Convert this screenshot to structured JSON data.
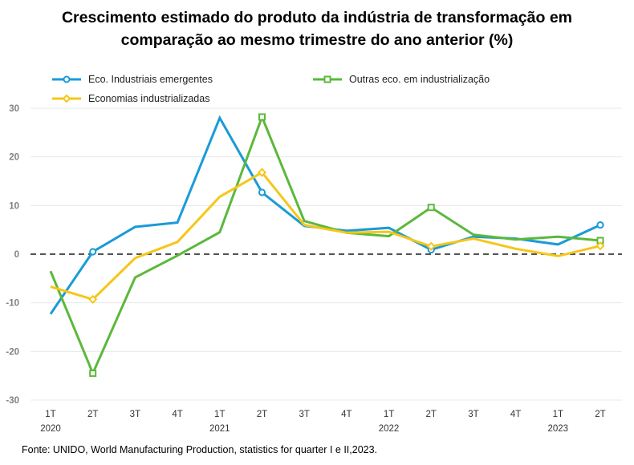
{
  "title_line1": "Crescimento estimado do produto da indústria de transformação em",
  "title_line2": "comparação ao mesmo trimestre do ano anterior (%)",
  "source": "Fonte: UNIDO, World Manufacturing Production, statistics for quarter I e II,2023.",
  "colors": {
    "emergentes": "#1a9bd7",
    "outras": "#5cb83b",
    "industrializadas": "#f6c619",
    "grid": "#e8e8e8",
    "zero_line": "#555555"
  },
  "chart_data": {
    "type": "line",
    "title": "Crescimento estimado do produto da indústria de transformação em comparação ao mesmo trimestre do ano anterior (%)",
    "categories": [
      "1T 2020",
      "2T",
      "3T",
      "4T",
      "1T 2021",
      "2T",
      "3T",
      "4T",
      "1T 2022",
      "2T",
      "3T",
      "4T",
      "1T 2023",
      "2T"
    ],
    "x_tick_labels": [
      "1T",
      "2T",
      "3T",
      "4T",
      "1T",
      "2T",
      "3T",
      "4T",
      "1T",
      "2T",
      "3T",
      "4T",
      "1T",
      "2T"
    ],
    "year_labels": [
      {
        "index": 0,
        "label": "2020"
      },
      {
        "index": 4,
        "label": "2021"
      },
      {
        "index": 8,
        "label": "2022"
      },
      {
        "index": 12,
        "label": "2023"
      }
    ],
    "y_ticks": [
      "30",
      "20",
      "10",
      "0",
      "-10",
      "-20",
      "-30"
    ],
    "ylim": [
      -30,
      30
    ],
    "grid": true,
    "reference_line": 0,
    "legend_position": "top",
    "series": [
      {
        "name": "Eco. Industriais emergentes",
        "key": "emergentes",
        "marker": "circle",
        "values": [
          -12.3,
          0.5,
          5.6,
          6.5,
          28.0,
          12.7,
          5.8,
          4.8,
          5.4,
          0.9,
          3.6,
          3.2,
          2.0,
          6.0
        ],
        "marked_points": [
          1,
          5,
          9,
          13
        ]
      },
      {
        "name": "Outras eco.  em industrialização",
        "key": "outras",
        "marker": "square",
        "values": [
          -3.5,
          -24.5,
          -4.8,
          -0.3,
          4.5,
          28.2,
          6.8,
          4.4,
          3.7,
          9.6,
          4.0,
          3.0,
          3.6,
          2.8
        ],
        "marked_points": [
          1,
          5,
          9,
          13
        ]
      },
      {
        "name": "Economias industrializadas",
        "key": "industrializadas",
        "marker": "diamond",
        "values": [
          -6.7,
          -9.3,
          -0.8,
          2.5,
          11.8,
          16.8,
          6.0,
          4.4,
          4.6,
          1.6,
          3.2,
          1.1,
          -0.4,
          1.7
        ],
        "marked_points": [
          1,
          5,
          9,
          13
        ]
      }
    ]
  }
}
